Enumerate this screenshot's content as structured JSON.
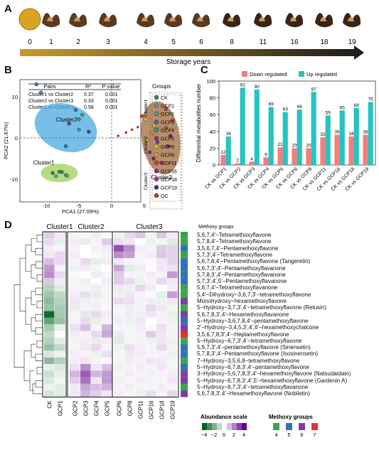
{
  "panels": {
    "a": "A",
    "b": "B",
    "c": "C",
    "d": "D"
  },
  "panel_a": {
    "years": [
      "0",
      "1",
      "2",
      "3",
      "4",
      "5",
      "6",
      "8",
      "11",
      "16",
      "18",
      "19"
    ],
    "arrow_label": "Storage years",
    "arrow_color_dark": "#1a1a1a",
    "arrow_color_light": "#c89a2c"
  },
  "panel_b": {
    "table_headers": [
      "Pairs",
      "R²",
      "P value"
    ],
    "table_rows": [
      [
        "Cluster1 vs Cluster2",
        "0.37",
        "0.001"
      ],
      [
        "Cluster2 vs Cluster3",
        "0.33",
        "0.001"
      ],
      [
        "Cluster1 vs Cluster3",
        "0.58",
        "0.001"
      ]
    ],
    "groups_title": "Groups",
    "groups": [
      {
        "label": "CK",
        "color": "#2e8b57"
      },
      {
        "label": "GCP1",
        "color": "#5f9ea0"
      },
      {
        "label": "GCP2",
        "color": "#3aa6a0"
      },
      {
        "label": "GCP3",
        "color": "#4a6aa8"
      },
      {
        "label": "GCP4",
        "color": "#3d8fa8"
      },
      {
        "label": "GCP5",
        "color": "#6a3d8f"
      },
      {
        "label": "GCP6",
        "color": "#e2c22d"
      },
      {
        "label": "GCP8",
        "color": "#f29b1c"
      },
      {
        "label": "GCP11",
        "color": "#d6412b"
      },
      {
        "label": "GCP16",
        "color": "#8b2f8f"
      },
      {
        "label": "GCP18",
        "color": "#b53a6e"
      },
      {
        "label": "GCP19",
        "color": "#5e2a7e"
      },
      {
        "label": "QC",
        "color": "#c0392b"
      }
    ],
    "cluster_labels": [
      "Cluster1",
      "Cluster2",
      "Cluster3"
    ],
    "ellipse_labels": [
      "Cluster2",
      "Cluster1",
      "Cluster3"
    ],
    "xlabel": "PCA1 (27.09%)",
    "ylabel": "PCA2 (21.67%)",
    "x_ticks": [
      "-10",
      "-5",
      "0",
      "5"
    ],
    "y_ticks": [
      "10",
      "0",
      "-10"
    ]
  },
  "chart_data": {
    "type": "bar",
    "ylabel": "Differential metabolites number",
    "ylim": [
      0,
      100
    ],
    "y_ticks": [
      "0",
      "20",
      "40",
      "60",
      "80",
      "100"
    ],
    "categories": [
      "CK vs GCP1",
      "CK vs GCP2",
      "CK vs GCP3",
      "CK vs GCP4",
      "CK vs GCP5",
      "CK vs GCP6",
      "CK vs GCP8",
      "CK vs GCP11",
      "CK vs GCP16",
      "CK vs GCP18",
      "CK vs GCP19"
    ],
    "series": [
      {
        "name": "Down regulated",
        "color": "#f07f7f",
        "values": [
          12,
          2,
          4,
          9,
          21,
          20,
          20,
          33,
          36,
          34,
          36
        ]
      },
      {
        "name": "Up regulated",
        "color": "#26c3c3",
        "values": [
          34,
          92,
          90,
          69,
          63,
          66,
          87,
          59,
          65,
          68,
          75
        ]
      }
    ],
    "legend_position": "top"
  },
  "panel_d": {
    "cluster_headers": [
      "Cluster1",
      "Cluster2",
      "Cluster3"
    ],
    "methoxy_header": "Methoxy groups",
    "columns": [
      "CK",
      "GCP1",
      "GCP2",
      "GCP3",
      "GCP4",
      "GCP5",
      "GCP6",
      "GCP8",
      "GCP11",
      "GCP16",
      "GCP18",
      "GCP19"
    ],
    "rows": [
      {
        "name": "5,6,7,4'−Tetramethoxyflavone",
        "methoxy": 4,
        "values": [
          0.8,
          0.4,
          0.2,
          -0.2,
          0.3,
          0.0,
          -0.3,
          0.6,
          0.9,
          -0.2,
          0.9,
          0.3
        ]
      },
      {
        "name": "5,7,8,4'−Tetramethoxyflavone",
        "methoxy": 4,
        "values": [
          0.6,
          -0.4,
          0.3,
          -0.4,
          0.2,
          0.8,
          0.5,
          0.4,
          0.0,
          -0.3,
          -0.2,
          -0.5
        ]
      },
      {
        "name": "3,5,6,7,4'−Pentamethoxyflavone",
        "methoxy": 5,
        "values": [
          0.3,
          0.2,
          0.2,
          0.0,
          0.2,
          0.3,
          2.8,
          1.8,
          0.3,
          0.2,
          0.8,
          0.7
        ]
      },
      {
        "name": "5,7,3',4'−Tetramethoxyflavone",
        "methoxy": 4,
        "values": [
          0.4,
          0.6,
          0.3,
          0.0,
          0.1,
          0.2,
          1.8,
          1.5,
          0.2,
          0.3,
          0.9,
          0.7
        ]
      },
      {
        "name": "5,6,7,8,4'−Pentamethoxyflavone (Tangeretin)",
        "methoxy": 5,
        "values": [
          1.0,
          0.6,
          0.2,
          0.6,
          -0.4,
          0.3,
          0.4,
          0.2,
          -0.2,
          0.1,
          0.4,
          0.7
        ]
      },
      {
        "name": "5,6,7,3',4'−Pentamethoxyflavanone",
        "methoxy": 5,
        "values": [
          1.6,
          0.2,
          -0.3,
          0.3,
          -0.2,
          0.0,
          1.4,
          -0.5,
          0.3,
          0.0,
          0.4,
          0.5
        ]
      },
      {
        "name": "5,7,8,3',4'−Pentamethoxyflavanone",
        "methoxy": 5,
        "values": [
          1.8,
          0.6,
          0.1,
          0.0,
          0.3,
          -0.2,
          0.8,
          0.2,
          -0.2,
          0.3,
          0.2,
          1.6
        ]
      },
      {
        "name": "5,7,3',4',5'−Pentamethoxyflavanone",
        "methoxy": 5,
        "values": [
          0.9,
          0.3,
          -0.2,
          -0.3,
          0.0,
          0.3,
          0.8,
          0.6,
          -0.3,
          0.2,
          0.6,
          0.4
        ]
      },
      {
        "name": "5,6,7,4'−Tetramethoxyflavanone",
        "methoxy": 4,
        "values": [
          -1.2,
          -0.5,
          0.2,
          -0.2,
          0.3,
          0.2,
          0.4,
          -0.3,
          0.6,
          0.3,
          0.0,
          0.3
        ]
      },
      {
        "name": "5,4'−Dihydroxy−3,6,7,3'−tetramethoxyflavone",
        "methoxy": 4,
        "values": [
          -1.5,
          -1.0,
          0.3,
          0.5,
          -0.4,
          0.2,
          -0.3,
          0.4,
          0.2,
          0.1,
          -0.4,
          1.5
        ]
      },
      {
        "name": "Monohydroxy−hexamethoxyflavone",
        "methoxy": 6,
        "values": [
          -1.8,
          -1.2,
          0.4,
          -0.3,
          0.2,
          -0.2,
          0.6,
          0.5,
          0.2,
          0.3,
          -0.3,
          0.4
        ]
      },
      {
        "name": "5−Hydroxy−3,7,3',4'−tetramethoxyflavone (Retusin)",
        "methoxy": 4,
        "values": [
          -1.6,
          -1.4,
          -0.4,
          0.2,
          0.3,
          0.1,
          -0.2,
          0.3,
          0.2,
          0.6,
          0.4,
          -0.2
        ]
      },
      {
        "name": "5,6,7,8,3',4'−Hexamethoxyflavanone",
        "methoxy": 6,
        "values": [
          -3.8,
          -1.4,
          0.2,
          -0.5,
          0.6,
          0.3,
          0.2,
          0.3,
          -0.3,
          0.4,
          0.2,
          -0.4
        ]
      },
      {
        "name": "5−Hydroxy−3,6,7,8,4'−pentamethoxyflavone",
        "methoxy": 5,
        "values": [
          -2.4,
          -1.6,
          0.2,
          0.6,
          -0.4,
          0.2,
          0.3,
          -0.3,
          0.4,
          0.0,
          0.2,
          -0.3
        ]
      },
      {
        "name": "2'−Hydroxy−3,4,5,3',4',6'−hexamethoxychalcone",
        "methoxy": 6,
        "values": [
          -1.4,
          -0.4,
          0.5,
          1.0,
          0.2,
          1.2,
          -0.2,
          0.2,
          0.3,
          -0.1,
          0.5,
          0.2
        ]
      },
      {
        "name": "3,5,6,7,8,3',4'−Heptamethoxyflavone",
        "methoxy": 7,
        "values": [
          -1.0,
          0.0,
          -0.3,
          0.2,
          0.6,
          1.4,
          0.4,
          -0.2,
          0.2,
          0.8,
          0.4,
          0.2
        ]
      },
      {
        "name": "5−Hydroxy−6,7,3',4'−tetramethoxyflavone",
        "methoxy": 4,
        "values": [
          -1.2,
          -0.5,
          0.2,
          0.3,
          -0.4,
          0.3,
          -0.5,
          -0.2,
          0.2,
          -0.3,
          0.4,
          -0.3
        ]
      },
      {
        "name": "5,6,7,3',4'−pentamethoxyflavone (Sinensetin)",
        "methoxy": 5,
        "values": [
          -1.6,
          -1.0,
          -0.2,
          0.4,
          0.6,
          0.2,
          -0.3,
          0.5,
          0.3,
          -0.2,
          0.6,
          0.2
        ]
      },
      {
        "name": "5,7,8,3',4'−Pentamethoxyflavone (Isosinensetin)",
        "methoxy": 5,
        "values": [
          -0.6,
          -0.3,
          0.3,
          0.2,
          -0.3,
          0.5,
          0.2,
          -0.4,
          0.3,
          0.2,
          0.2,
          -0.3
        ]
      },
      {
        "name": "7−Hydroxy−3,5,6,8−tetramethoxyflavone",
        "methoxy": 4,
        "values": [
          -1.8,
          -1.2,
          0.3,
          0.4,
          0.2,
          0.1,
          -0.2,
          0.3,
          0.2,
          0.4,
          0.3,
          0.2
        ]
      },
      {
        "name": "5−Hydroxy−6,7,8,3',4'−pentamethoxyflavone",
        "methoxy": 5,
        "values": [
          -0.4,
          -0.6,
          0.5,
          1.8,
          0.4,
          1.0,
          -0.3,
          0.2,
          0.3,
          0.2,
          0.4,
          -0.2
        ]
      },
      {
        "name": "3−Hydroxy−5,6,7,8,3',4'−hexamethoxyflavone (Natsudaidain)",
        "methoxy": 6,
        "values": [
          -0.8,
          -0.4,
          1.2,
          2.6,
          1.2,
          1.6,
          -0.2,
          0.3,
          0.2,
          -0.3,
          0.2,
          0.3
        ]
      },
      {
        "name": "5−Hydroxy−6,7,8,3',4',5'−hexamethoxyflavone (Gardenin A)",
        "methoxy": 6,
        "values": [
          -0.6,
          -0.2,
          0.8,
          2.2,
          0.4,
          1.6,
          -0.3,
          -0.2,
          0.3,
          0.2,
          -0.2,
          0.4
        ]
      },
      {
        "name": "5−Hydroxy−6,7,3',4'−tetramethoxyflavanone",
        "methoxy": 4,
        "values": [
          -0.3,
          -0.5,
          0.3,
          1.4,
          1.0,
          1.2,
          0.2,
          -0.3,
          0.2,
          -0.2,
          0.3,
          0.2
        ]
      },
      {
        "name": "5,6,7,8,3',4'−Hexamethoxyflavone (Nobiletin)",
        "methoxy": 6,
        "values": [
          -0.7,
          -0.5,
          0.4,
          1.2,
          0.8,
          0.4,
          0.3,
          0.2,
          -0.3,
          0.5,
          0.2,
          0.6
        ]
      }
    ],
    "methoxy_colors": {
      "4": "#3aa64a",
      "5": "#2f73b8",
      "6": "#7b3fa0",
      "7": "#e03030"
    },
    "abundance_title": "Abundance scale",
    "abundance_ticks": [
      "−4",
      "−2",
      "0",
      "2",
      "4"
    ],
    "methoxy_legend_title": "Methoxy groups",
    "methoxy_legend_labels": [
      "4",
      "5",
      "6",
      "7"
    ]
  }
}
